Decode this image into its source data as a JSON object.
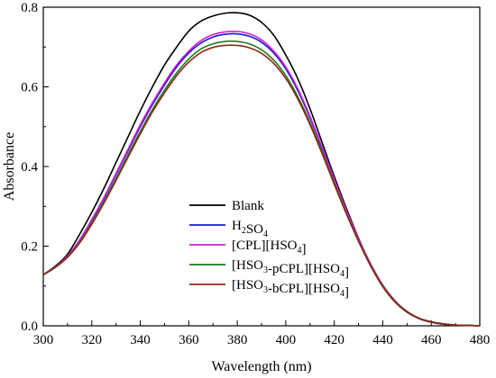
{
  "chart_data": {
    "type": "line",
    "xlabel": "Wavelength (nm)",
    "ylabel": "Absorbance",
    "xlim": [
      300,
      480
    ],
    "ylim": [
      0.0,
      0.8
    ],
    "x_ticks": [
      "300",
      "320",
      "340",
      "360",
      "380",
      "400",
      "420",
      "440",
      "460",
      "480"
    ],
    "y_ticks": [
      "0.0",
      "0.2",
      "0.4",
      "0.6",
      "0.8"
    ],
    "grid": false,
    "legend_position": "lower-center",
    "x": [
      300,
      305,
      310,
      315,
      320,
      325,
      330,
      335,
      340,
      345,
      350,
      355,
      360,
      365,
      370,
      375,
      380,
      385,
      390,
      395,
      400,
      405,
      410,
      415,
      420,
      425,
      430,
      435,
      440,
      445,
      450,
      455,
      460,
      465,
      470,
      475,
      480
    ],
    "series": [
      {
        "name": "Blank",
        "legend_main": "Blank",
        "legend_sub": "",
        "legend_suffix": "",
        "color": "#000000",
        "values": [
          0.128,
          0.15,
          0.18,
          0.23,
          0.285,
          0.345,
          0.41,
          0.475,
          0.54,
          0.6,
          0.655,
          0.7,
          0.74,
          0.765,
          0.778,
          0.785,
          0.786,
          0.78,
          0.762,
          0.73,
          0.68,
          0.62,
          0.545,
          0.46,
          0.375,
          0.295,
          0.22,
          0.155,
          0.102,
          0.063,
          0.036,
          0.019,
          0.01,
          0.005,
          0.002,
          0.001,
          0.0
        ]
      },
      {
        "name": "H2SO4",
        "legend_main": "H",
        "legend_sub": "2",
        "legend_suffix": "SO",
        "legend_sub2": "4",
        "color": "#1a1ad6",
        "values": [
          0.128,
          0.148,
          0.175,
          0.215,
          0.265,
          0.32,
          0.38,
          0.44,
          0.5,
          0.555,
          0.605,
          0.65,
          0.685,
          0.71,
          0.725,
          0.732,
          0.733,
          0.727,
          0.712,
          0.685,
          0.645,
          0.59,
          0.522,
          0.445,
          0.365,
          0.288,
          0.216,
          0.153,
          0.1,
          0.061,
          0.035,
          0.018,
          0.009,
          0.004,
          0.002,
          0.001,
          0.0
        ]
      },
      {
        "name": "[CPL][HSO4]",
        "legend_main": "[CPL][HSO",
        "legend_sub": "4",
        "legend_suffix": "]",
        "color": "#d21fd2",
        "values": [
          0.128,
          0.148,
          0.176,
          0.216,
          0.267,
          0.322,
          0.383,
          0.444,
          0.505,
          0.56,
          0.61,
          0.655,
          0.69,
          0.716,
          0.731,
          0.738,
          0.739,
          0.733,
          0.718,
          0.69,
          0.65,
          0.595,
          0.526,
          0.448,
          0.368,
          0.29,
          0.218,
          0.154,
          0.101,
          0.062,
          0.035,
          0.018,
          0.009,
          0.004,
          0.002,
          0.001,
          0.0
        ]
      },
      {
        "name": "[HSO3-pCPL][HSO4]",
        "legend_main": "[HSO",
        "legend_sub": "3",
        "legend_suffix": "-pCPL][HSO",
        "legend_sub2": "4",
        "legend_suffix2": "]",
        "color": "#1f7a1f",
        "values": [
          0.128,
          0.147,
          0.173,
          0.21,
          0.258,
          0.312,
          0.37,
          0.43,
          0.488,
          0.543,
          0.592,
          0.635,
          0.67,
          0.695,
          0.708,
          0.714,
          0.714,
          0.708,
          0.693,
          0.667,
          0.628,
          0.575,
          0.51,
          0.436,
          0.358,
          0.283,
          0.213,
          0.151,
          0.099,
          0.061,
          0.035,
          0.018,
          0.009,
          0.004,
          0.002,
          0.001,
          0.0
        ]
      },
      {
        "name": "[HSO3-bCPL][HSO4]",
        "legend_main": "[HSO",
        "legend_sub": "3",
        "legend_suffix": "-bCPL][HSO",
        "legend_sub2": "4",
        "legend_suffix2": "]",
        "color": "#8b2a12",
        "values": [
          0.128,
          0.147,
          0.172,
          0.208,
          0.255,
          0.308,
          0.365,
          0.424,
          0.482,
          0.537,
          0.585,
          0.628,
          0.662,
          0.686,
          0.699,
          0.704,
          0.704,
          0.698,
          0.684,
          0.659,
          0.621,
          0.569,
          0.505,
          0.432,
          0.355,
          0.281,
          0.212,
          0.15,
          0.098,
          0.06,
          0.034,
          0.018,
          0.009,
          0.004,
          0.002,
          0.001,
          0.0
        ]
      }
    ]
  }
}
